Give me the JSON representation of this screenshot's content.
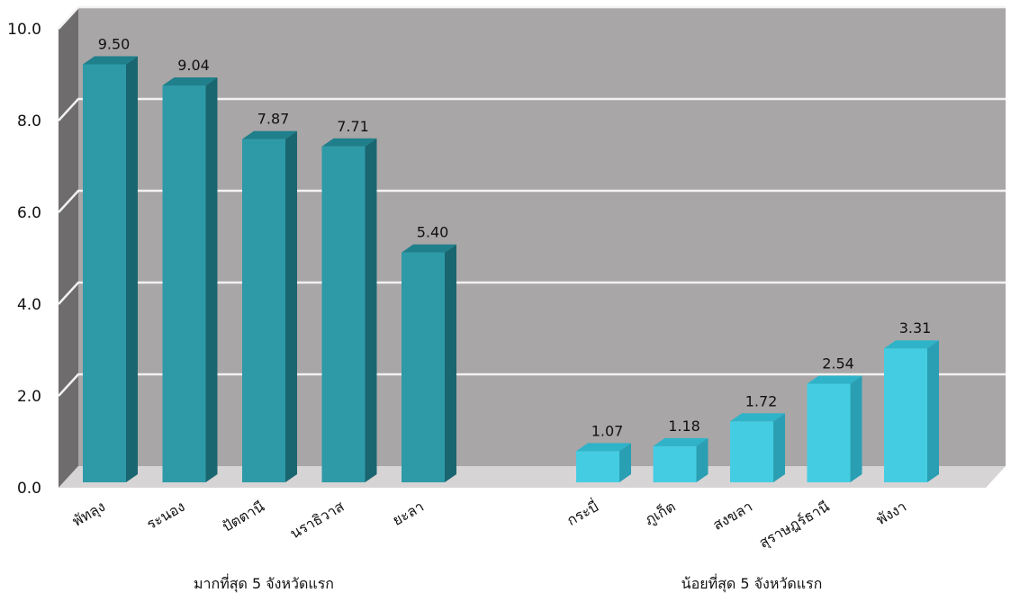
{
  "chart_data": {
    "type": "bar",
    "ylim": [
      0,
      10
    ],
    "yticks": [
      "0.0",
      "2.0",
      "4.0",
      "6.0",
      "8.0",
      "10.0"
    ],
    "grid": true,
    "groups": [
      {
        "label": "มากที่สุด 5 จังหวัดแรก",
        "color": "#2e9aa8",
        "top_color": "#1f7f8b",
        "side_color": "#1a6670",
        "categories": [
          "พัทลุง",
          "ระนอง",
          "ปัตตานี",
          "นราธิวาส",
          "ยะลา"
        ],
        "values": [
          9.5,
          9.04,
          7.87,
          7.71,
          5.4
        ],
        "value_labels": [
          "9.50",
          "9.04",
          "7.87",
          "7.71",
          "5.40"
        ]
      },
      {
        "label": "น้อยที่สุด 5 จังหวัดแรก",
        "color": "#44cde2",
        "top_color": "#2fb3c9",
        "side_color": "#2a9fb3",
        "categories": [
          "กระบี่",
          "ภูเก็ต",
          "สงขลา",
          "สุราษฎร์ธานี",
          "พังงา"
        ],
        "values": [
          1.07,
          1.18,
          1.72,
          2.54,
          3.31
        ],
        "value_labels": [
          "1.07",
          "1.18",
          "1.72",
          "2.54",
          "3.31"
        ]
      }
    ]
  }
}
